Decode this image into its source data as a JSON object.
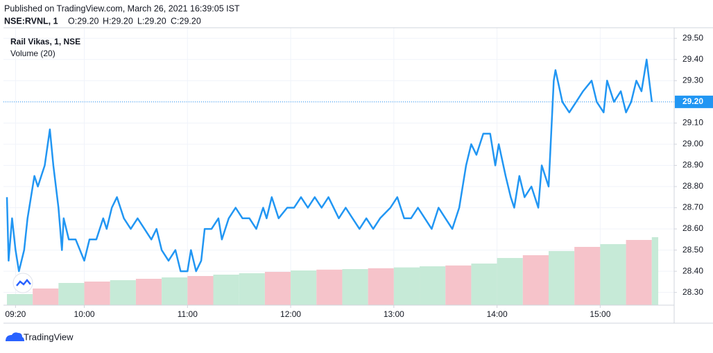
{
  "header": {
    "published": "Published on TradingView.com, March 26, 2021 16:39:05 IST",
    "symbol": "NSE:RVNL, 1",
    "ohlc": [
      "O:29.20",
      "H:29.20",
      "L:29.20",
      "C:29.20"
    ]
  },
  "chart_data": {
    "type": "line",
    "x": [
      "09:15",
      "09:16",
      "09:18",
      "09:20",
      "09:22",
      "09:25",
      "09:27",
      "09:31",
      "09:33",
      "09:35",
      "09:37",
      "09:40",
      "09:42",
      "09:45",
      "09:47",
      "09:48",
      "09:51",
      "09:55",
      "10:00",
      "10:03",
      "10:07",
      "10:11",
      "10:13",
      "10:16",
      "10:19",
      "10:23",
      "10:27",
      "10:31",
      "10:35",
      "10:39",
      "10:42",
      "10:45",
      "10:49",
      "10:53",
      "10:56",
      "11:00",
      "11:02",
      "11:05",
      "11:08",
      "11:10",
      "11:14",
      "11:18",
      "11:20",
      "11:24",
      "11:28",
      "11:32",
      "11:36",
      "11:40",
      "11:44",
      "11:46",
      "11:49",
      "11:53",
      "11:58",
      "12:02",
      "12:06",
      "12:10",
      "12:14",
      "12:18",
      "12:22",
      "12:28",
      "12:32",
      "12:36",
      "12:40",
      "12:44",
      "12:48",
      "12:52",
      "12:58",
      "13:02",
      "13:06",
      "13:10",
      "13:14",
      "13:18",
      "13:22",
      "13:26",
      "13:30",
      "13:34",
      "13:38",
      "13:42",
      "13:45",
      "13:48",
      "13:52",
      "13:56",
      "13:59",
      "14:01",
      "14:05",
      "14:08",
      "14:10",
      "14:13",
      "14:16",
      "14:20",
      "14:24",
      "14:26",
      "14:30",
      "14:33",
      "14:34",
      "14:38",
      "14:42",
      "14:46",
      "14:50",
      "14:55",
      "14:58",
      "15:02",
      "15:04",
      "15:08",
      "15:12",
      "15:15",
      "15:18",
      "15:21",
      "15:24",
      "15:27",
      "15:30"
    ],
    "series": [
      {
        "name": "Rail Vikas, 1, NSE",
        "color": "#2196f3",
        "values": [
          28.75,
          28.45,
          28.65,
          28.5,
          28.4,
          28.5,
          28.65,
          28.85,
          28.8,
          28.85,
          28.9,
          29.07,
          28.9,
          28.7,
          28.5,
          28.65,
          28.55,
          28.55,
          28.45,
          28.55,
          28.55,
          28.65,
          28.6,
          28.7,
          28.75,
          28.65,
          28.6,
          28.65,
          28.6,
          28.55,
          28.6,
          28.5,
          28.45,
          28.5,
          28.4,
          28.4,
          28.5,
          28.4,
          28.45,
          28.6,
          28.6,
          28.65,
          28.55,
          28.65,
          28.7,
          28.65,
          28.65,
          28.6,
          28.7,
          28.65,
          28.75,
          28.65,
          28.7,
          28.7,
          28.75,
          28.7,
          28.75,
          28.7,
          28.75,
          28.65,
          28.7,
          28.65,
          28.6,
          28.65,
          28.6,
          28.65,
          28.7,
          28.75,
          28.65,
          28.65,
          28.7,
          28.65,
          28.6,
          28.7,
          28.65,
          28.6,
          28.7,
          28.9,
          29.0,
          28.95,
          29.05,
          29.05,
          28.9,
          29.0,
          28.85,
          28.75,
          28.7,
          28.85,
          28.75,
          28.8,
          28.7,
          28.9,
          28.8,
          29.3,
          29.35,
          29.2,
          29.15,
          29.2,
          29.25,
          29.3,
          29.2,
          29.15,
          29.3,
          29.2,
          29.25,
          29.15,
          29.2,
          29.3,
          29.25,
          29.4,
          29.2
        ]
      }
    ],
    "volume": {
      "name": "Volume (20)",
      "x": [
        "09:15",
        "09:30",
        "09:45",
        "10:00",
        "10:15",
        "10:30",
        "10:45",
        "11:00",
        "11:15",
        "11:30",
        "11:45",
        "12:00",
        "12:15",
        "12:30",
        "12:45",
        "13:00",
        "13:15",
        "13:30",
        "13:45",
        "14:00",
        "14:15",
        "14:30",
        "14:45",
        "15:00",
        "15:15",
        "15:30"
      ],
      "values": [
        4,
        6,
        8,
        8.5,
        9,
        9.5,
        10,
        10.5,
        11,
        11.5,
        12,
        12.5,
        12.8,
        13,
        13.3,
        13.6,
        14,
        14.3,
        15,
        17,
        18,
        19.5,
        21,
        22,
        23.5,
        24.5
      ],
      "colors": [
        "#c6ead7",
        "#f6c3ca",
        "#c6ead7",
        "#f6c3ca",
        "#c6ead7",
        "#f6c3ca",
        "#c6ead7",
        "#f6c3ca",
        "#c6ead7",
        "#c6ead7",
        "#f6c3ca",
        "#c6ead7",
        "#f6c3ca",
        "#c6ead7",
        "#f6c3ca",
        "#c6ead7",
        "#c6ead7",
        "#f6c3ca",
        "#c6ead7",
        "#c6ead7",
        "#f6c3ca",
        "#c6ead7",
        "#f6c3ca",
        "#c6ead7",
        "#f6c3ca",
        "#c6ead7"
      ],
      "vlim": [
        0,
        100
      ]
    },
    "last_price": {
      "value": 29.2,
      "label": "29.20"
    },
    "xlim": [
      "09:13",
      "15:43"
    ],
    "xticks": [
      "09:20",
      "10:00",
      "11:00",
      "12:00",
      "13:00",
      "14:00",
      "15:00"
    ],
    "ylim": [
      28.24,
      29.55
    ],
    "yticks": [
      {
        "value": 28.3,
        "label": "28.30"
      },
      {
        "value": 28.4,
        "label": "28.40"
      },
      {
        "value": 28.5,
        "label": "28.50"
      },
      {
        "value": 28.6,
        "label": "28.60"
      },
      {
        "value": 28.7,
        "label": "28.70"
      },
      {
        "value": 28.8,
        "label": "28.80"
      },
      {
        "value": 28.9,
        "label": "28.90"
      },
      {
        "value": 29.0,
        "label": "29.00"
      },
      {
        "value": 29.1,
        "label": "29.10"
      },
      {
        "value": 29.2,
        "label": "29.20"
      },
      {
        "value": 29.3,
        "label": "29.30"
      },
      {
        "value": 29.4,
        "label": "29.40"
      },
      {
        "value": 29.5,
        "label": "29.50"
      }
    ],
    "grid": true
  },
  "footer": "TradingView"
}
